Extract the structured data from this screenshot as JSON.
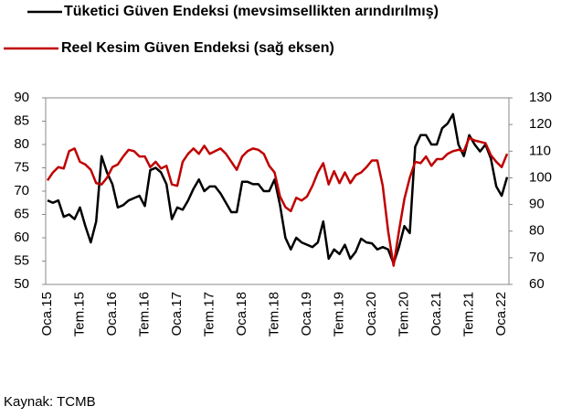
{
  "chart_data": {
    "type": "line",
    "categories": [
      "Oca.15",
      null,
      null,
      null,
      null,
      null,
      "Tem.15",
      null,
      null,
      null,
      null,
      null,
      "Oca.16",
      null,
      null,
      null,
      null,
      null,
      "Tem.16",
      null,
      null,
      null,
      null,
      null,
      "Oca.17",
      null,
      null,
      null,
      null,
      null,
      "Tem.17",
      null,
      null,
      null,
      null,
      null,
      "Oca.18",
      null,
      null,
      null,
      null,
      null,
      "Tem.18",
      null,
      null,
      null,
      null,
      null,
      "Oca.19",
      null,
      null,
      null,
      null,
      null,
      "Tem.19",
      null,
      null,
      null,
      null,
      null,
      "Oca.20",
      null,
      null,
      null,
      null,
      null,
      "Tem.20",
      null,
      null,
      null,
      null,
      null,
      "Oca.21",
      null,
      null,
      null,
      null,
      null,
      "Tem.21",
      null,
      null,
      null,
      null,
      null,
      "Oca.22",
      null
    ],
    "series": [
      {
        "name": "Tüketici Güven Endeksi (mevsimsellikten arındırılmış)",
        "color": "#000000",
        "axis": "y",
        "values": [
          68,
          67.5,
          68,
          64.5,
          65,
          64,
          66.5,
          62.5,
          59,
          63.5,
          77.5,
          74,
          71.5,
          66.5,
          67,
          68,
          68.5,
          69,
          66.8,
          74.5,
          75,
          74,
          71.5,
          64,
          66.5,
          66,
          68,
          70.5,
          72.5,
          70,
          71,
          71,
          69.5,
          67.5,
          65.5,
          65.5,
          72,
          72,
          71.5,
          71.5,
          70,
          70,
          72.5,
          67,
          60,
          57.5,
          60,
          59,
          58.5,
          58,
          59,
          63.5,
          55.5,
          57.5,
          56.5,
          58.5,
          55.5,
          57,
          59.8,
          59,
          58.8,
          57.5,
          58,
          57.5,
          54.5,
          58,
          62.5,
          61,
          79.5,
          82,
          82,
          80,
          80,
          83.5,
          84.5,
          86.5,
          80,
          77.5,
          82,
          80,
          78.5,
          80,
          77,
          71,
          69,
          73
        ]
      },
      {
        "name": "Reel Kesim Güven Endeksi (sağ eksen)",
        "color": "#c00000",
        "axis": "y2",
        "values": [
          99,
          102,
          104,
          103.5,
          110,
          111,
          106,
          105,
          103,
          98,
          97.5,
          100,
          104,
          105,
          108,
          110.5,
          110,
          108,
          108,
          104,
          106,
          103.5,
          104.5,
          97.5,
          97,
          106,
          109,
          111,
          109,
          112,
          109,
          110,
          111,
          109,
          106,
          103,
          108,
          110,
          111,
          110.5,
          109,
          104.5,
          102,
          93,
          89,
          87.5,
          92.5,
          91.5,
          93,
          97,
          102,
          105.5,
          97.5,
          102.5,
          98,
          102,
          98,
          101,
          102,
          104,
          106.5,
          106.5,
          97,
          80,
          67,
          80,
          92,
          100,
          106,
          105.5,
          108,
          104.5,
          107,
          107,
          109,
          110,
          110.5,
          110,
          115,
          114,
          113.5,
          113,
          108.5,
          106,
          104,
          109
        ]
      }
    ],
    "ylim": [
      50,
      90
    ],
    "yticks": [
      50,
      55,
      60,
      65,
      70,
      75,
      80,
      85,
      90
    ],
    "y2lim": [
      60,
      130
    ],
    "y2ticks": [
      60,
      70,
      80,
      90,
      100,
      110,
      120,
      130
    ],
    "source": "Kaynak: TCMB"
  }
}
